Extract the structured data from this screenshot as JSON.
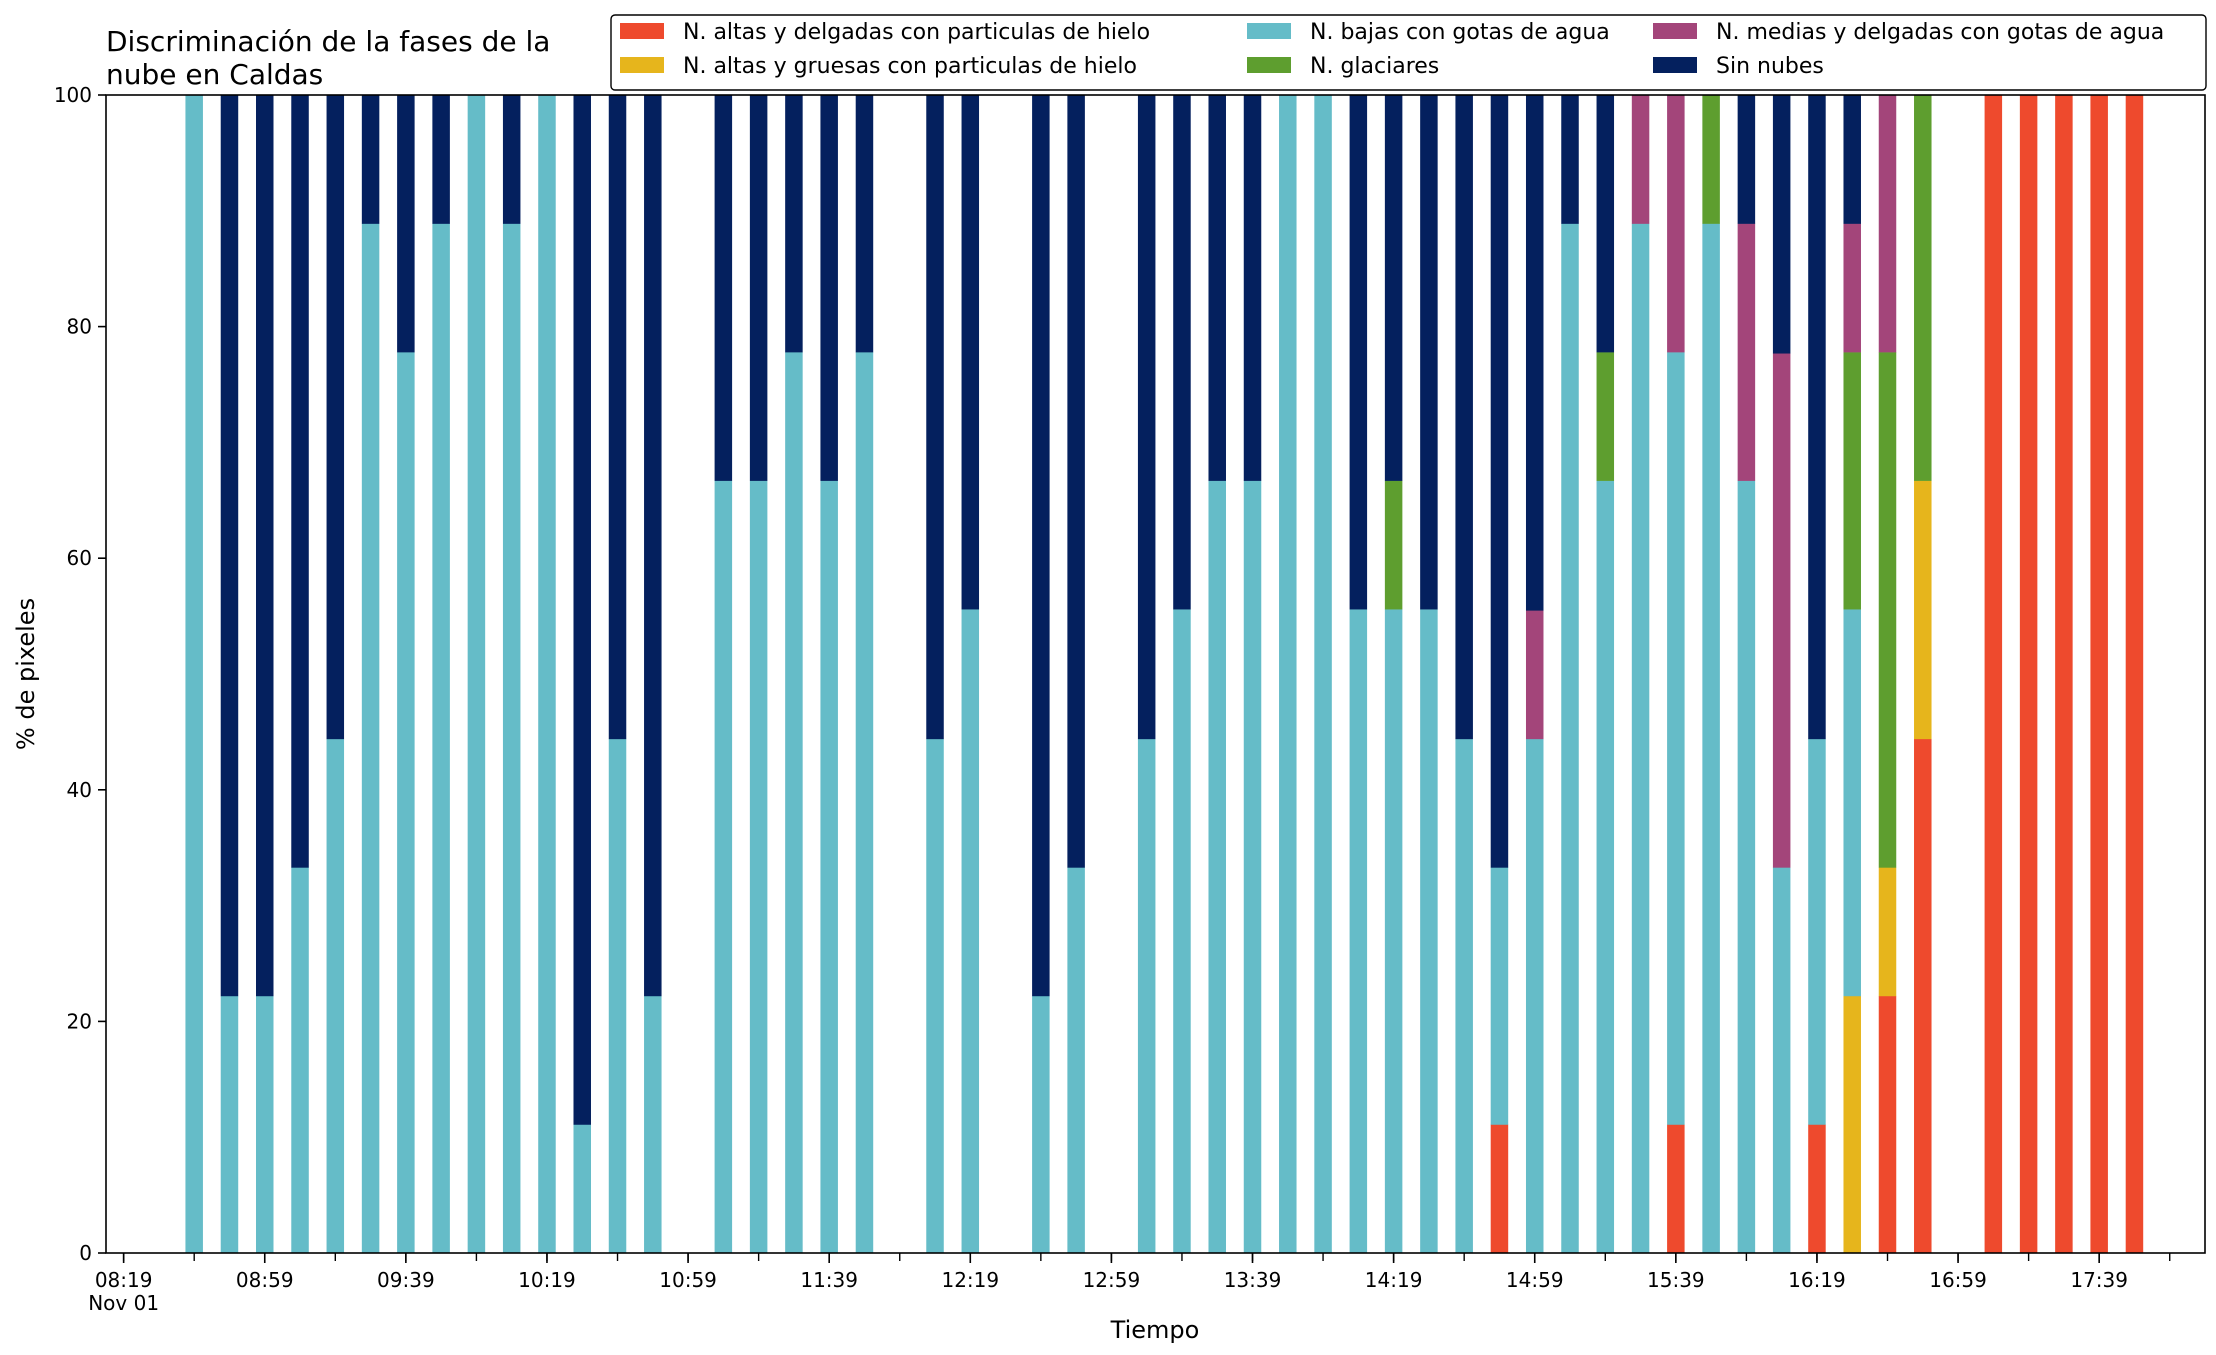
{
  "chart_data": {
    "type": "bar",
    "stacked": true,
    "title_lines": [
      "Discriminación de la fases de la",
      "nube en Caldas"
    ],
    "xlabel": "Tiempo",
    "ylabel": "% de pixeles",
    "ylim": [
      0,
      100
    ],
    "yticks": [
      0,
      20,
      40,
      60,
      80,
      100
    ],
    "xlim": [
      "08:14",
      "18:09"
    ],
    "xticks": [
      {
        "time": "08:19",
        "label": "08:19",
        "sublabel": "Nov 01"
      },
      {
        "time": "08:59",
        "label": "08:59"
      },
      {
        "time": "09:39",
        "label": "09:39"
      },
      {
        "time": "10:19",
        "label": "10:19"
      },
      {
        "time": "10:59",
        "label": "10:59"
      },
      {
        "time": "11:39",
        "label": "11:39"
      },
      {
        "time": "12:19",
        "label": "12:19"
      },
      {
        "time": "12:59",
        "label": "12:59"
      },
      {
        "time": "13:39",
        "label": "13:39"
      },
      {
        "time": "14:19",
        "label": "14:19"
      },
      {
        "time": "14:59",
        "label": "14:59"
      },
      {
        "time": "15:39",
        "label": "15:39"
      },
      {
        "time": "16:19",
        "label": "16:19"
      },
      {
        "time": "16:59",
        "label": "16:59"
      },
      {
        "time": "17:39",
        "label": "17:39"
      }
    ],
    "grid": false,
    "legend_position": "top-right",
    "legend_columns": 3,
    "series": [
      {
        "name": "N. altas y delgadas con particulas de hielo",
        "color": "#ee4a2d"
      },
      {
        "name": "N. altas y gruesas con particulas de hielo",
        "color": "#e6b51c"
      },
      {
        "name": "N. bajas con gotas de agua",
        "color": "#65bcc8"
      },
      {
        "name": "N. glaciares",
        "color": "#5e9e2f"
      },
      {
        "name": "N. medias y delgadas con gotas de agua",
        "color": "#a3457a"
      },
      {
        "name": "Sin nubes",
        "color": "#04205e"
      }
    ],
    "series_order_note": "",
    "bars": [
      {
        "x": "08:39",
        "values": [
          0,
          0,
          100,
          0,
          0,
          0
        ]
      },
      {
        "x": "08:49",
        "values": [
          0,
          0,
          22.2,
          0,
          0,
          77.8
        ]
      },
      {
        "x": "08:59",
        "values": [
          0,
          0,
          22.2,
          0,
          0,
          77.8
        ]
      },
      {
        "x": "09:09",
        "values": [
          0,
          0,
          33.3,
          0,
          0,
          66.7
        ]
      },
      {
        "x": "09:19",
        "values": [
          0,
          0,
          44.4,
          0,
          0,
          55.6
        ]
      },
      {
        "x": "09:29",
        "values": [
          0,
          0,
          88.9,
          0,
          0,
          11.1
        ]
      },
      {
        "x": "09:39",
        "values": [
          0,
          0,
          77.8,
          0,
          0,
          22.2
        ]
      },
      {
        "x": "09:49",
        "values": [
          0,
          0,
          88.9,
          0,
          0,
          11.1
        ]
      },
      {
        "x": "09:59",
        "values": [
          0,
          0,
          100,
          0,
          0,
          0
        ]
      },
      {
        "x": "10:09",
        "values": [
          0,
          0,
          88.9,
          0,
          0,
          11.1
        ]
      },
      {
        "x": "10:19",
        "values": [
          0,
          0,
          100,
          0,
          0,
          0
        ]
      },
      {
        "x": "10:29",
        "values": [
          0,
          0,
          11.1,
          0,
          0,
          88.9
        ]
      },
      {
        "x": "10:39",
        "values": [
          0,
          0,
          44.4,
          0,
          0,
          55.6
        ]
      },
      {
        "x": "10:49",
        "values": [
          0,
          0,
          22.2,
          0,
          0,
          77.8
        ]
      },
      {
        "x": "11:09",
        "values": [
          0,
          0,
          66.7,
          0,
          0,
          33.3
        ]
      },
      {
        "x": "11:19",
        "values": [
          0,
          0,
          66.7,
          0,
          0,
          33.3
        ]
      },
      {
        "x": "11:29",
        "values": [
          0,
          0,
          77.8,
          0,
          0,
          22.2
        ]
      },
      {
        "x": "11:39",
        "values": [
          0,
          0,
          66.7,
          0,
          0,
          33.3
        ]
      },
      {
        "x": "11:49",
        "values": [
          0,
          0,
          77.8,
          0,
          0,
          22.2
        ]
      },
      {
        "x": "12:09",
        "values": [
          0,
          0,
          44.4,
          0,
          0,
          55.6
        ]
      },
      {
        "x": "12:19",
        "values": [
          0,
          0,
          55.6,
          0,
          0,
          44.4
        ]
      },
      {
        "x": "12:39",
        "values": [
          0,
          0,
          22.2,
          0,
          0,
          77.8
        ]
      },
      {
        "x": "12:49",
        "values": [
          0,
          0,
          33.3,
          0,
          0,
          66.7
        ]
      },
      {
        "x": "13:09",
        "values": [
          0,
          0,
          44.4,
          0,
          0,
          55.6
        ]
      },
      {
        "x": "13:19",
        "values": [
          0,
          0,
          55.6,
          0,
          0,
          44.4
        ]
      },
      {
        "x": "13:29",
        "values": [
          0,
          0,
          66.7,
          0,
          0,
          33.3
        ]
      },
      {
        "x": "13:39",
        "values": [
          0,
          0,
          66.7,
          0,
          0,
          33.3
        ]
      },
      {
        "x": "13:49",
        "values": [
          0,
          0,
          100,
          0,
          0,
          0
        ]
      },
      {
        "x": "13:59",
        "values": [
          0,
          0,
          100,
          0,
          0,
          0
        ]
      },
      {
        "x": "14:09",
        "values": [
          0,
          0,
          55.6,
          0,
          0,
          44.4
        ]
      },
      {
        "x": "14:19",
        "values": [
          0,
          0,
          55.6,
          11.1,
          0,
          33.3
        ]
      },
      {
        "x": "14:29",
        "values": [
          0,
          0,
          55.6,
          0,
          0,
          44.4
        ]
      },
      {
        "x": "14:39",
        "values": [
          0,
          0,
          44.4,
          0,
          0,
          55.6
        ]
      },
      {
        "x": "14:49",
        "values": [
          11.1,
          0,
          22.2,
          0,
          0,
          66.7
        ]
      },
      {
        "x": "14:59",
        "values": [
          0,
          0,
          44.4,
          0,
          11.1,
          44.5
        ]
      },
      {
        "x": "15:09",
        "values": [
          0,
          0,
          88.9,
          0,
          0,
          11.1
        ]
      },
      {
        "x": "15:19",
        "values": [
          0,
          0,
          66.7,
          11.1,
          0,
          22.2
        ]
      },
      {
        "x": "15:29",
        "values": [
          0,
          0,
          88.9,
          0,
          11.1,
          0
        ]
      },
      {
        "x": "15:39",
        "values": [
          11.1,
          0,
          66.7,
          0,
          22.2,
          0
        ]
      },
      {
        "x": "15:49",
        "values": [
          0,
          0,
          88.9,
          11.1,
          0,
          0
        ]
      },
      {
        "x": "15:59",
        "values": [
          0,
          0,
          66.7,
          0,
          22.2,
          11.1
        ]
      },
      {
        "x": "16:09",
        "values": [
          0,
          0,
          33.3,
          0,
          44.4,
          22.3
        ]
      },
      {
        "x": "16:19",
        "values": [
          11.1,
          0,
          33.3,
          0,
          0,
          55.6
        ]
      },
      {
        "x": "16:29",
        "values": [
          0,
          22.2,
          33.4,
          22.2,
          11.1,
          11.1
        ]
      },
      {
        "x": "16:39",
        "values": [
          22.2,
          11.1,
          0,
          44.5,
          22.2,
          0
        ]
      },
      {
        "x": "16:49",
        "values": [
          44.4,
          22.3,
          0,
          33.3,
          0,
          0
        ]
      },
      {
        "x": "17:09",
        "values": [
          100,
          0,
          0,
          0,
          0,
          0
        ]
      },
      {
        "x": "17:19",
        "values": [
          100,
          0,
          0,
          0,
          0,
          0
        ]
      },
      {
        "x": "17:29",
        "values": [
          100,
          0,
          0,
          0,
          0,
          0
        ]
      },
      {
        "x": "17:39",
        "values": [
          100,
          0,
          0,
          0,
          0,
          0
        ]
      },
      {
        "x": "17:49",
        "values": [
          100,
          0,
          0,
          0,
          0,
          0
        ]
      }
    ]
  }
}
